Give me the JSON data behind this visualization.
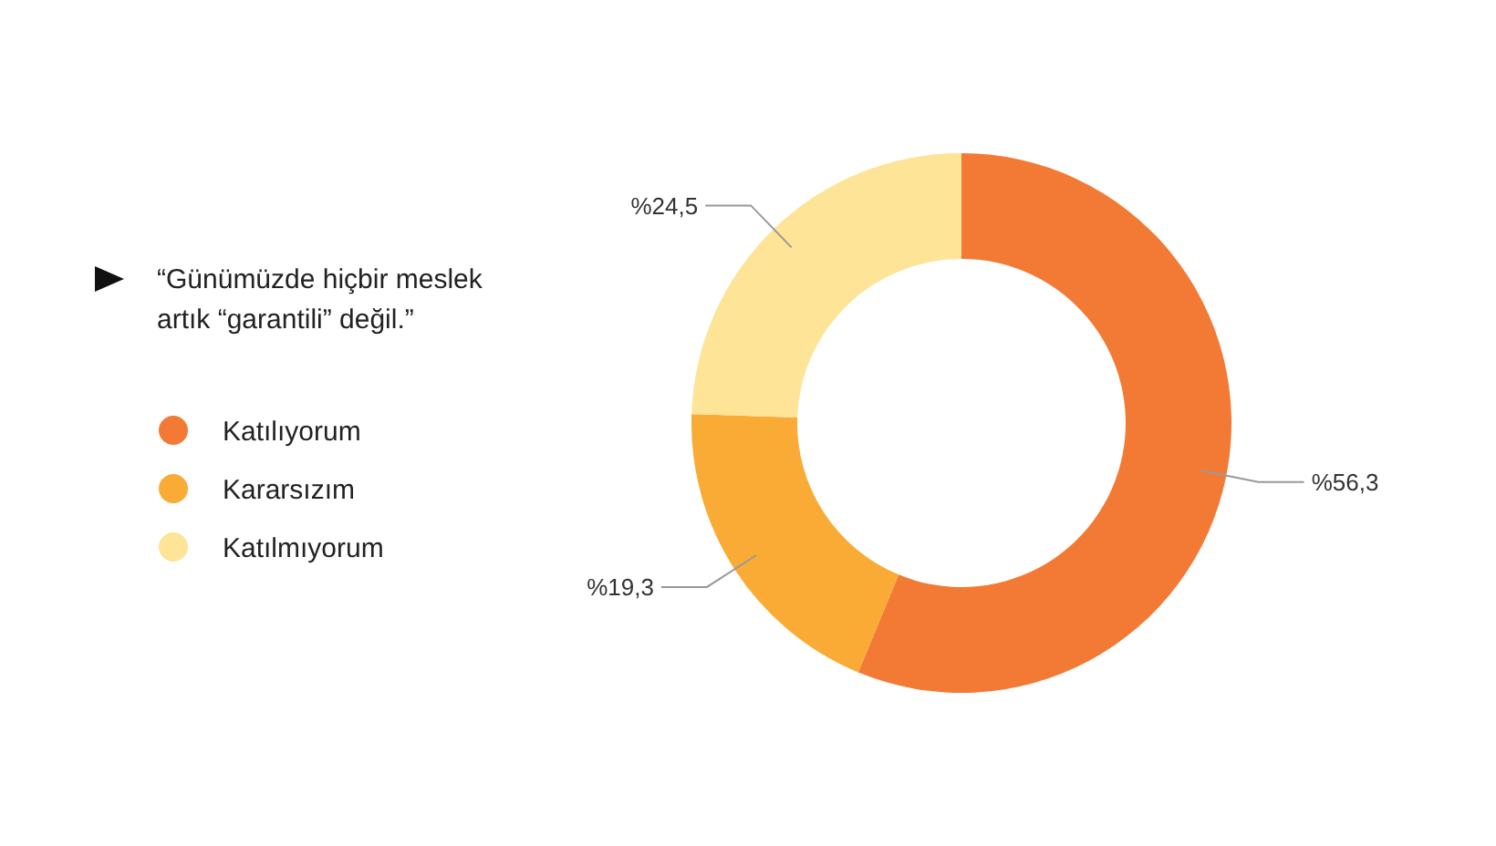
{
  "chart_data": {
    "type": "donut",
    "title": "“Günümüzde hiçbir meslek artık “garantili” değil.”",
    "categories": [
      "Katılıyorum",
      "Kararsızım",
      "Katılmıyorum"
    ],
    "values": [
      56.3,
      19.3,
      24.5
    ],
    "colors": [
      "#f37a35",
      "#f9ab35",
      "#fde497"
    ],
    "value_labels": [
      "%56,3",
      "%19,3",
      "%24,5"
    ],
    "legend": "left"
  }
}
